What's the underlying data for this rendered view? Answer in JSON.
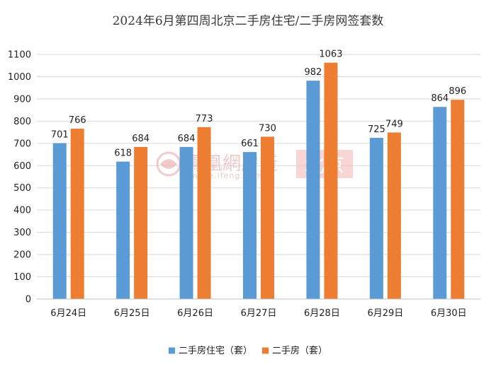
{
  "chart_data": {
    "type": "bar",
    "title": "2024年6月第四周北京二手房住宅/二手房网签套数",
    "categories": [
      "6月24日",
      "6月25日",
      "6月26日",
      "6月27日",
      "6月28日",
      "6月29日",
      "6月30日"
    ],
    "series": [
      {
        "name": "二手房住宅（套）",
        "color": "#5b9bd5",
        "values": [
          701,
          618,
          684,
          661,
          982,
          725,
          864
        ]
      },
      {
        "name": "二手房（套）",
        "color": "#ed7d31",
        "values": [
          766,
          684,
          773,
          730,
          1063,
          749,
          896
        ]
      }
    ],
    "ylim": [
      0,
      1100
    ],
    "yticks": [
      "0",
      "100",
      "200",
      "300",
      "400",
      "500",
      "600",
      "700",
      "800",
      "900",
      "1000",
      "1100"
    ],
    "grid": true,
    "legend_position": "bottom",
    "data_labels": true
  },
  "watermark": {
    "brand": "鳳凰網房產",
    "url": "house.ifeng.com",
    "city": "北京",
    "icon": "ifeng-logo-icon"
  }
}
